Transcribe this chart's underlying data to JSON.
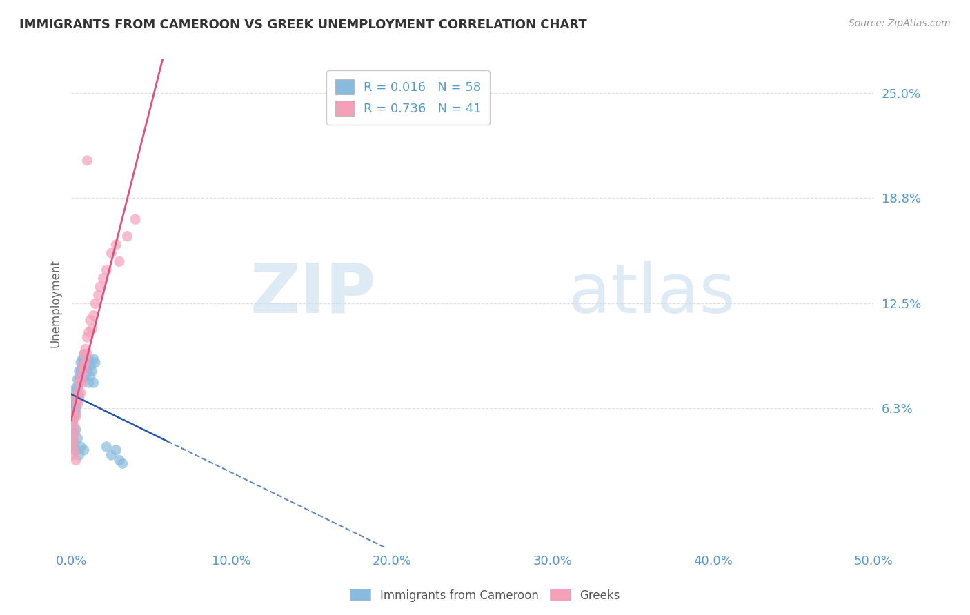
{
  "title": "IMMIGRANTS FROM CAMEROON VS GREEK UNEMPLOYMENT CORRELATION CHART",
  "source_text": "Source: ZipAtlas.com",
  "ylabel": "Unemployment",
  "xlim": [
    0.0,
    0.5
  ],
  "ylim": [
    -0.02,
    0.27
  ],
  "yticks": [
    0.063,
    0.125,
    0.188,
    0.25
  ],
  "ytick_labels": [
    "6.3%",
    "12.5%",
    "18.8%",
    "25.0%"
  ],
  "xticks": [
    0.0,
    0.1,
    0.2,
    0.3,
    0.4,
    0.5
  ],
  "xtick_labels": [
    "0.0%",
    "10.0%",
    "20.0%",
    "30.0%",
    "40.0%",
    "50.0%"
  ],
  "blue_color": "#88bbdd",
  "pink_color": "#f4a0b8",
  "blue_line_color": "#2255aa",
  "pink_line_color": "#e05080",
  "blue_R": 0.016,
  "blue_N": 58,
  "pink_R": 0.736,
  "pink_N": 41,
  "legend_label_blue": "Immigrants from Cameroon",
  "legend_label_pink": "Greeks",
  "watermark_zip": "ZIP",
  "watermark_atlas": "atlas",
  "background_color": "#ffffff",
  "grid_color": "#dddddd",
  "title_color": "#333333",
  "axis_label_color": "#5599cc",
  "blue_scatter": [
    [
      0.001,
      0.063
    ],
    [
      0.001,
      0.058
    ],
    [
      0.001,
      0.055
    ],
    [
      0.001,
      0.068
    ],
    [
      0.002,
      0.072
    ],
    [
      0.002,
      0.065
    ],
    [
      0.002,
      0.06
    ],
    [
      0.002,
      0.07
    ],
    [
      0.002,
      0.058
    ],
    [
      0.003,
      0.075
    ],
    [
      0.003,
      0.065
    ],
    [
      0.003,
      0.063
    ],
    [
      0.003,
      0.068
    ],
    [
      0.003,
      0.06
    ],
    [
      0.004,
      0.08
    ],
    [
      0.004,
      0.072
    ],
    [
      0.004,
      0.068
    ],
    [
      0.004,
      0.075
    ],
    [
      0.005,
      0.085
    ],
    [
      0.005,
      0.08
    ],
    [
      0.005,
      0.07
    ],
    [
      0.005,
      0.078
    ],
    [
      0.006,
      0.09
    ],
    [
      0.006,
      0.085
    ],
    [
      0.006,
      0.082
    ],
    [
      0.007,
      0.092
    ],
    [
      0.007,
      0.088
    ],
    [
      0.007,
      0.08
    ],
    [
      0.008,
      0.095
    ],
    [
      0.008,
      0.09
    ],
    [
      0.008,
      0.085
    ],
    [
      0.009,
      0.088
    ],
    [
      0.009,
      0.082
    ],
    [
      0.01,
      0.09
    ],
    [
      0.01,
      0.085
    ],
    [
      0.011,
      0.092
    ],
    [
      0.011,
      0.078
    ],
    [
      0.012,
      0.088
    ],
    [
      0.012,
      0.082
    ],
    [
      0.013,
      0.085
    ],
    [
      0.014,
      0.092
    ],
    [
      0.014,
      0.078
    ],
    [
      0.015,
      0.09
    ],
    [
      0.001,
      0.045
    ],
    [
      0.001,
      0.04
    ],
    [
      0.002,
      0.048
    ],
    [
      0.002,
      0.042
    ],
    [
      0.003,
      0.05
    ],
    [
      0.003,
      0.038
    ],
    [
      0.004,
      0.045
    ],
    [
      0.005,
      0.035
    ],
    [
      0.006,
      0.04
    ],
    [
      0.008,
      0.038
    ],
    [
      0.022,
      0.04
    ],
    [
      0.025,
      0.035
    ],
    [
      0.028,
      0.038
    ],
    [
      0.03,
      0.032
    ],
    [
      0.032,
      0.03
    ]
  ],
  "pink_scatter": [
    [
      0.001,
      0.055
    ],
    [
      0.001,
      0.045
    ],
    [
      0.001,
      0.042
    ],
    [
      0.001,
      0.058
    ],
    [
      0.002,
      0.06
    ],
    [
      0.002,
      0.052
    ],
    [
      0.002,
      0.048
    ],
    [
      0.003,
      0.068
    ],
    [
      0.003,
      0.058
    ],
    [
      0.004,
      0.072
    ],
    [
      0.004,
      0.065
    ],
    [
      0.005,
      0.078
    ],
    [
      0.005,
      0.068
    ],
    [
      0.006,
      0.082
    ],
    [
      0.006,
      0.072
    ],
    [
      0.007,
      0.088
    ],
    [
      0.007,
      0.078
    ],
    [
      0.008,
      0.095
    ],
    [
      0.008,
      0.085
    ],
    [
      0.009,
      0.098
    ],
    [
      0.009,
      0.09
    ],
    [
      0.01,
      0.105
    ],
    [
      0.01,
      0.095
    ],
    [
      0.011,
      0.108
    ],
    [
      0.012,
      0.115
    ],
    [
      0.013,
      0.11
    ],
    [
      0.014,
      0.118
    ],
    [
      0.015,
      0.125
    ],
    [
      0.017,
      0.13
    ],
    [
      0.018,
      0.135
    ],
    [
      0.02,
      0.14
    ],
    [
      0.022,
      0.145
    ],
    [
      0.025,
      0.155
    ],
    [
      0.028,
      0.16
    ],
    [
      0.03,
      0.15
    ],
    [
      0.035,
      0.165
    ],
    [
      0.04,
      0.175
    ],
    [
      0.01,
      0.21
    ],
    [
      0.001,
      0.035
    ],
    [
      0.002,
      0.038
    ],
    [
      0.003,
      0.032
    ]
  ]
}
